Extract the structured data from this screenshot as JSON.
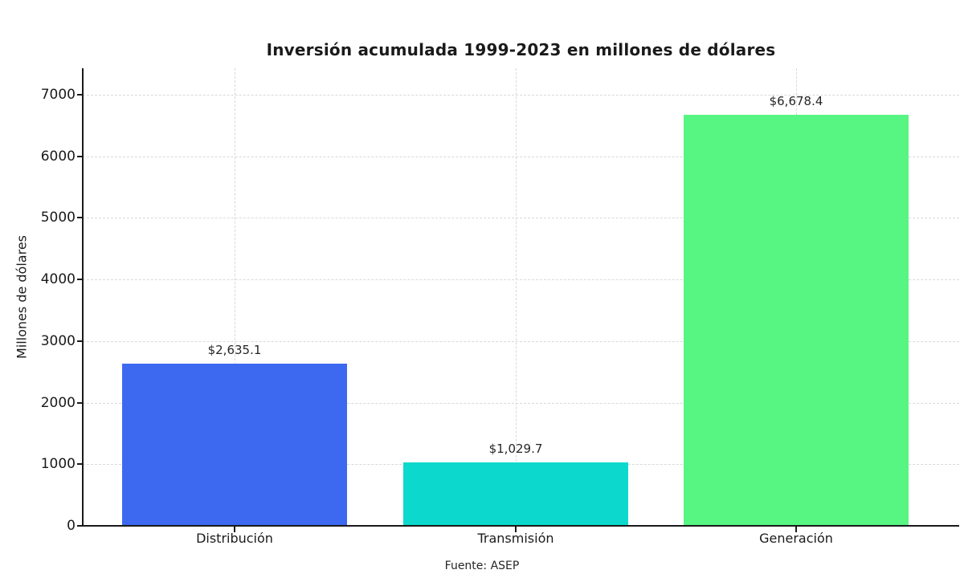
{
  "chart_data": {
    "type": "bar",
    "title": "Inversión acumulada 1999-2023 en millones de dólares",
    "xlabel": "",
    "ylabel": "Millones de dólares",
    "source": "Fuente: ASEP",
    "categories": [
      "Distribución",
      "Transmisión",
      "Generación"
    ],
    "values": [
      2635.1,
      1029.7,
      6678.4
    ],
    "value_labels": [
      "$2,635.1",
      "$1,029.7",
      "$6,678.4"
    ],
    "bar_colors": [
      "#3c69f0",
      "#0dd8cd",
      "#57f582"
    ],
    "yticks": [
      0,
      1000,
      2000,
      3000,
      4000,
      5000,
      6000,
      7000
    ],
    "ylim": [
      0,
      7430
    ],
    "grid": {
      "horizontal": true,
      "vertical": true,
      "style": "dashed",
      "color": "#d8d8d8"
    },
    "legend": null
  }
}
